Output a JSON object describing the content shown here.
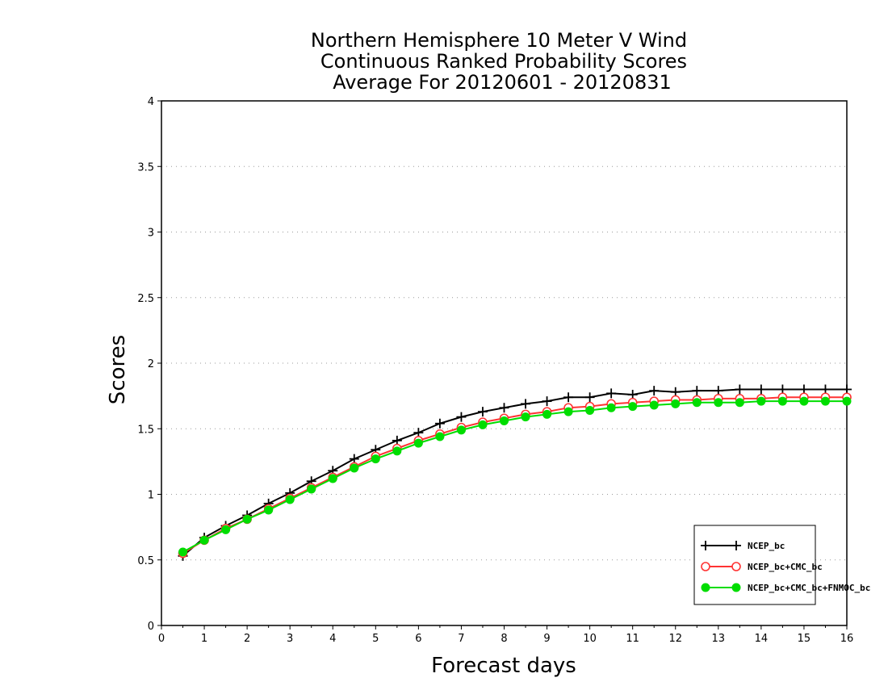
{
  "chart_data": {
    "type": "line",
    "title_lines": [
      "Northern Hemisphere 10 Meter V Wind",
      "Continuous Ranked Probability Scores",
      "Average For 20120601 - 20120831"
    ],
    "xlabel": "Forecast days",
    "ylabel": "Scores",
    "xlim": [
      0,
      16
    ],
    "ylim": [
      0,
      4
    ],
    "x_ticks": [
      0,
      1,
      2,
      3,
      4,
      5,
      6,
      7,
      8,
      9,
      10,
      11,
      12,
      13,
      14,
      15,
      16
    ],
    "y_ticks": [
      0,
      0.5,
      1,
      1.5,
      2,
      2.5,
      3,
      3.5,
      4
    ],
    "y_tick_labels": [
      "0",
      "0.5",
      "1",
      "1.5",
      "2",
      "2.5",
      "3",
      "3.5",
      "4"
    ],
    "grid": "horizontal dotted",
    "legend_position": "bottom-right",
    "x": [
      0.5,
      1,
      1.5,
      2,
      2.5,
      3,
      3.5,
      4,
      4.5,
      5,
      5.5,
      6,
      6.5,
      7,
      7.5,
      8,
      8.5,
      9,
      9.5,
      10,
      10.5,
      11,
      11.5,
      12,
      12.5,
      13,
      13.5,
      14,
      14.5,
      15,
      15.5,
      16
    ],
    "series": [
      {
        "name": "NCEP_bc",
        "color": "#000000",
        "marker": "plus",
        "values": [
          0.53,
          0.67,
          0.76,
          0.84,
          0.93,
          1.01,
          1.1,
          1.18,
          1.27,
          1.34,
          1.41,
          1.47,
          1.54,
          1.59,
          1.63,
          1.66,
          1.69,
          1.71,
          1.74,
          1.74,
          1.77,
          1.76,
          1.79,
          1.78,
          1.79,
          1.79,
          1.8,
          1.8,
          1.8,
          1.8,
          1.8,
          1.8
        ]
      },
      {
        "name": "NCEP_bc+CMC_bc",
        "color": "#ff3333",
        "marker": "open-circle",
        "values": [
          0.55,
          0.65,
          0.74,
          0.81,
          0.89,
          0.97,
          1.05,
          1.13,
          1.21,
          1.29,
          1.35,
          1.41,
          1.46,
          1.51,
          1.55,
          1.58,
          1.61,
          1.63,
          1.66,
          1.67,
          1.69,
          1.7,
          1.71,
          1.72,
          1.72,
          1.73,
          1.73,
          1.73,
          1.74,
          1.74,
          1.74,
          1.74
        ]
      },
      {
        "name": "NCEP_bc+CMC_bc+FNMOC_bc",
        "color": "#00dd00",
        "marker": "filled-circle",
        "values": [
          0.56,
          0.65,
          0.73,
          0.81,
          0.88,
          0.96,
          1.04,
          1.12,
          1.2,
          1.27,
          1.33,
          1.39,
          1.44,
          1.49,
          1.53,
          1.56,
          1.59,
          1.61,
          1.63,
          1.64,
          1.66,
          1.67,
          1.68,
          1.69,
          1.7,
          1.7,
          1.7,
          1.71,
          1.71,
          1.71,
          1.71,
          1.71
        ]
      }
    ]
  }
}
